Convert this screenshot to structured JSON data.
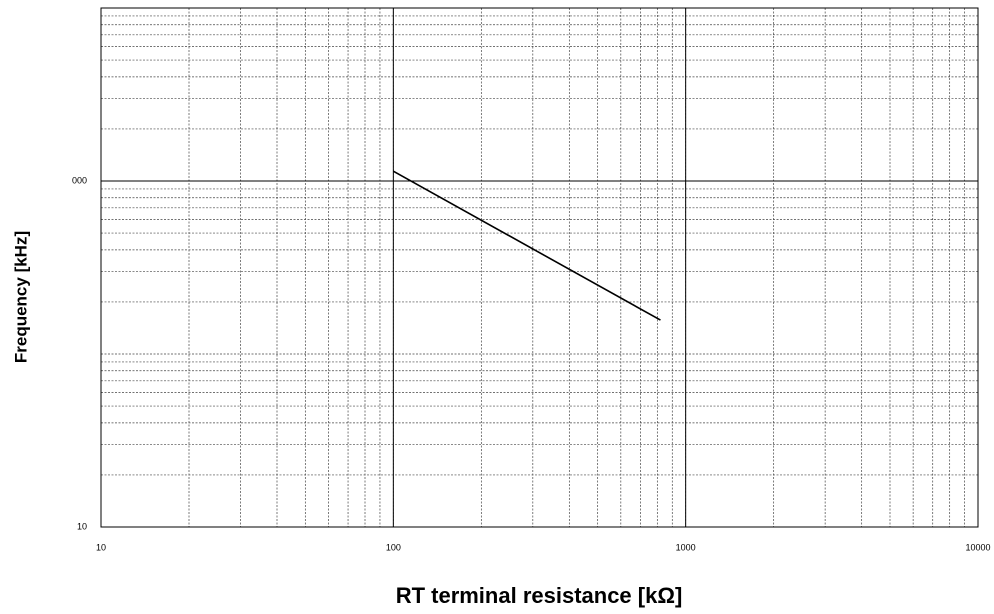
{
  "chart_data": {
    "type": "line",
    "x_label": "RT terminal resistance  [kΩ]",
    "y_label": "Frequency [kHz]",
    "x": [
      100,
      820
    ],
    "series": [
      {
        "color": "#000000",
        "values": [
          1140,
          157
        ]
      }
    ],
    "xlim": [
      10,
      10000
    ],
    "xticks": [
      10,
      100,
      1000,
      10000
    ],
    "ylim": [
      10,
      10000
    ],
    "yticks": [
      10,
      {
        "value": 1000,
        "label": "000"
      }
    ],
    "xscale": "log",
    "yscale": "log",
    "grid": true,
    "minor_grid": true
  }
}
